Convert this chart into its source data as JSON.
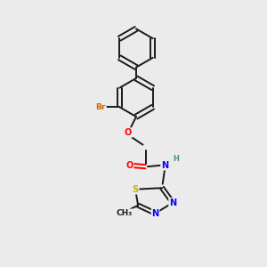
{
  "bg_color": "#ebebeb",
  "bond_color": "#1a1a1a",
  "bond_width": 1.4,
  "atom_colors": {
    "O": "#ff0000",
    "N": "#0000ff",
    "S": "#b8b800",
    "Br": "#cc6600",
    "H": "#4a9090",
    "C": "#1a1a1a"
  },
  "font_size": 7.0
}
